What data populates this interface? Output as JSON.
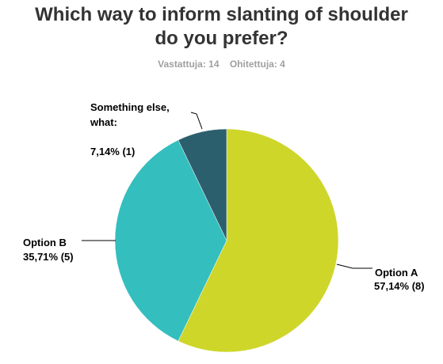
{
  "chart_data": {
    "type": "pie",
    "title_line1": "Which way to inform slanting of shoulder",
    "title_line2": "do you prefer?",
    "answered_label": "Vastattuja: 14",
    "skipped_label": "Ohitettuja: 4",
    "slices": [
      {
        "label": "Option A",
        "value": 8,
        "value_label": "57,14% (8)",
        "color": "#ced62a"
      },
      {
        "label": "Option B",
        "value": 5,
        "value_label": "35,71% (5)",
        "color": "#34bebe"
      },
      {
        "label_line1": "Something else,",
        "label_line2": "what:",
        "value": 1,
        "value_label": "7,14% (1)",
        "color": "#2c5f6d"
      }
    ]
  }
}
